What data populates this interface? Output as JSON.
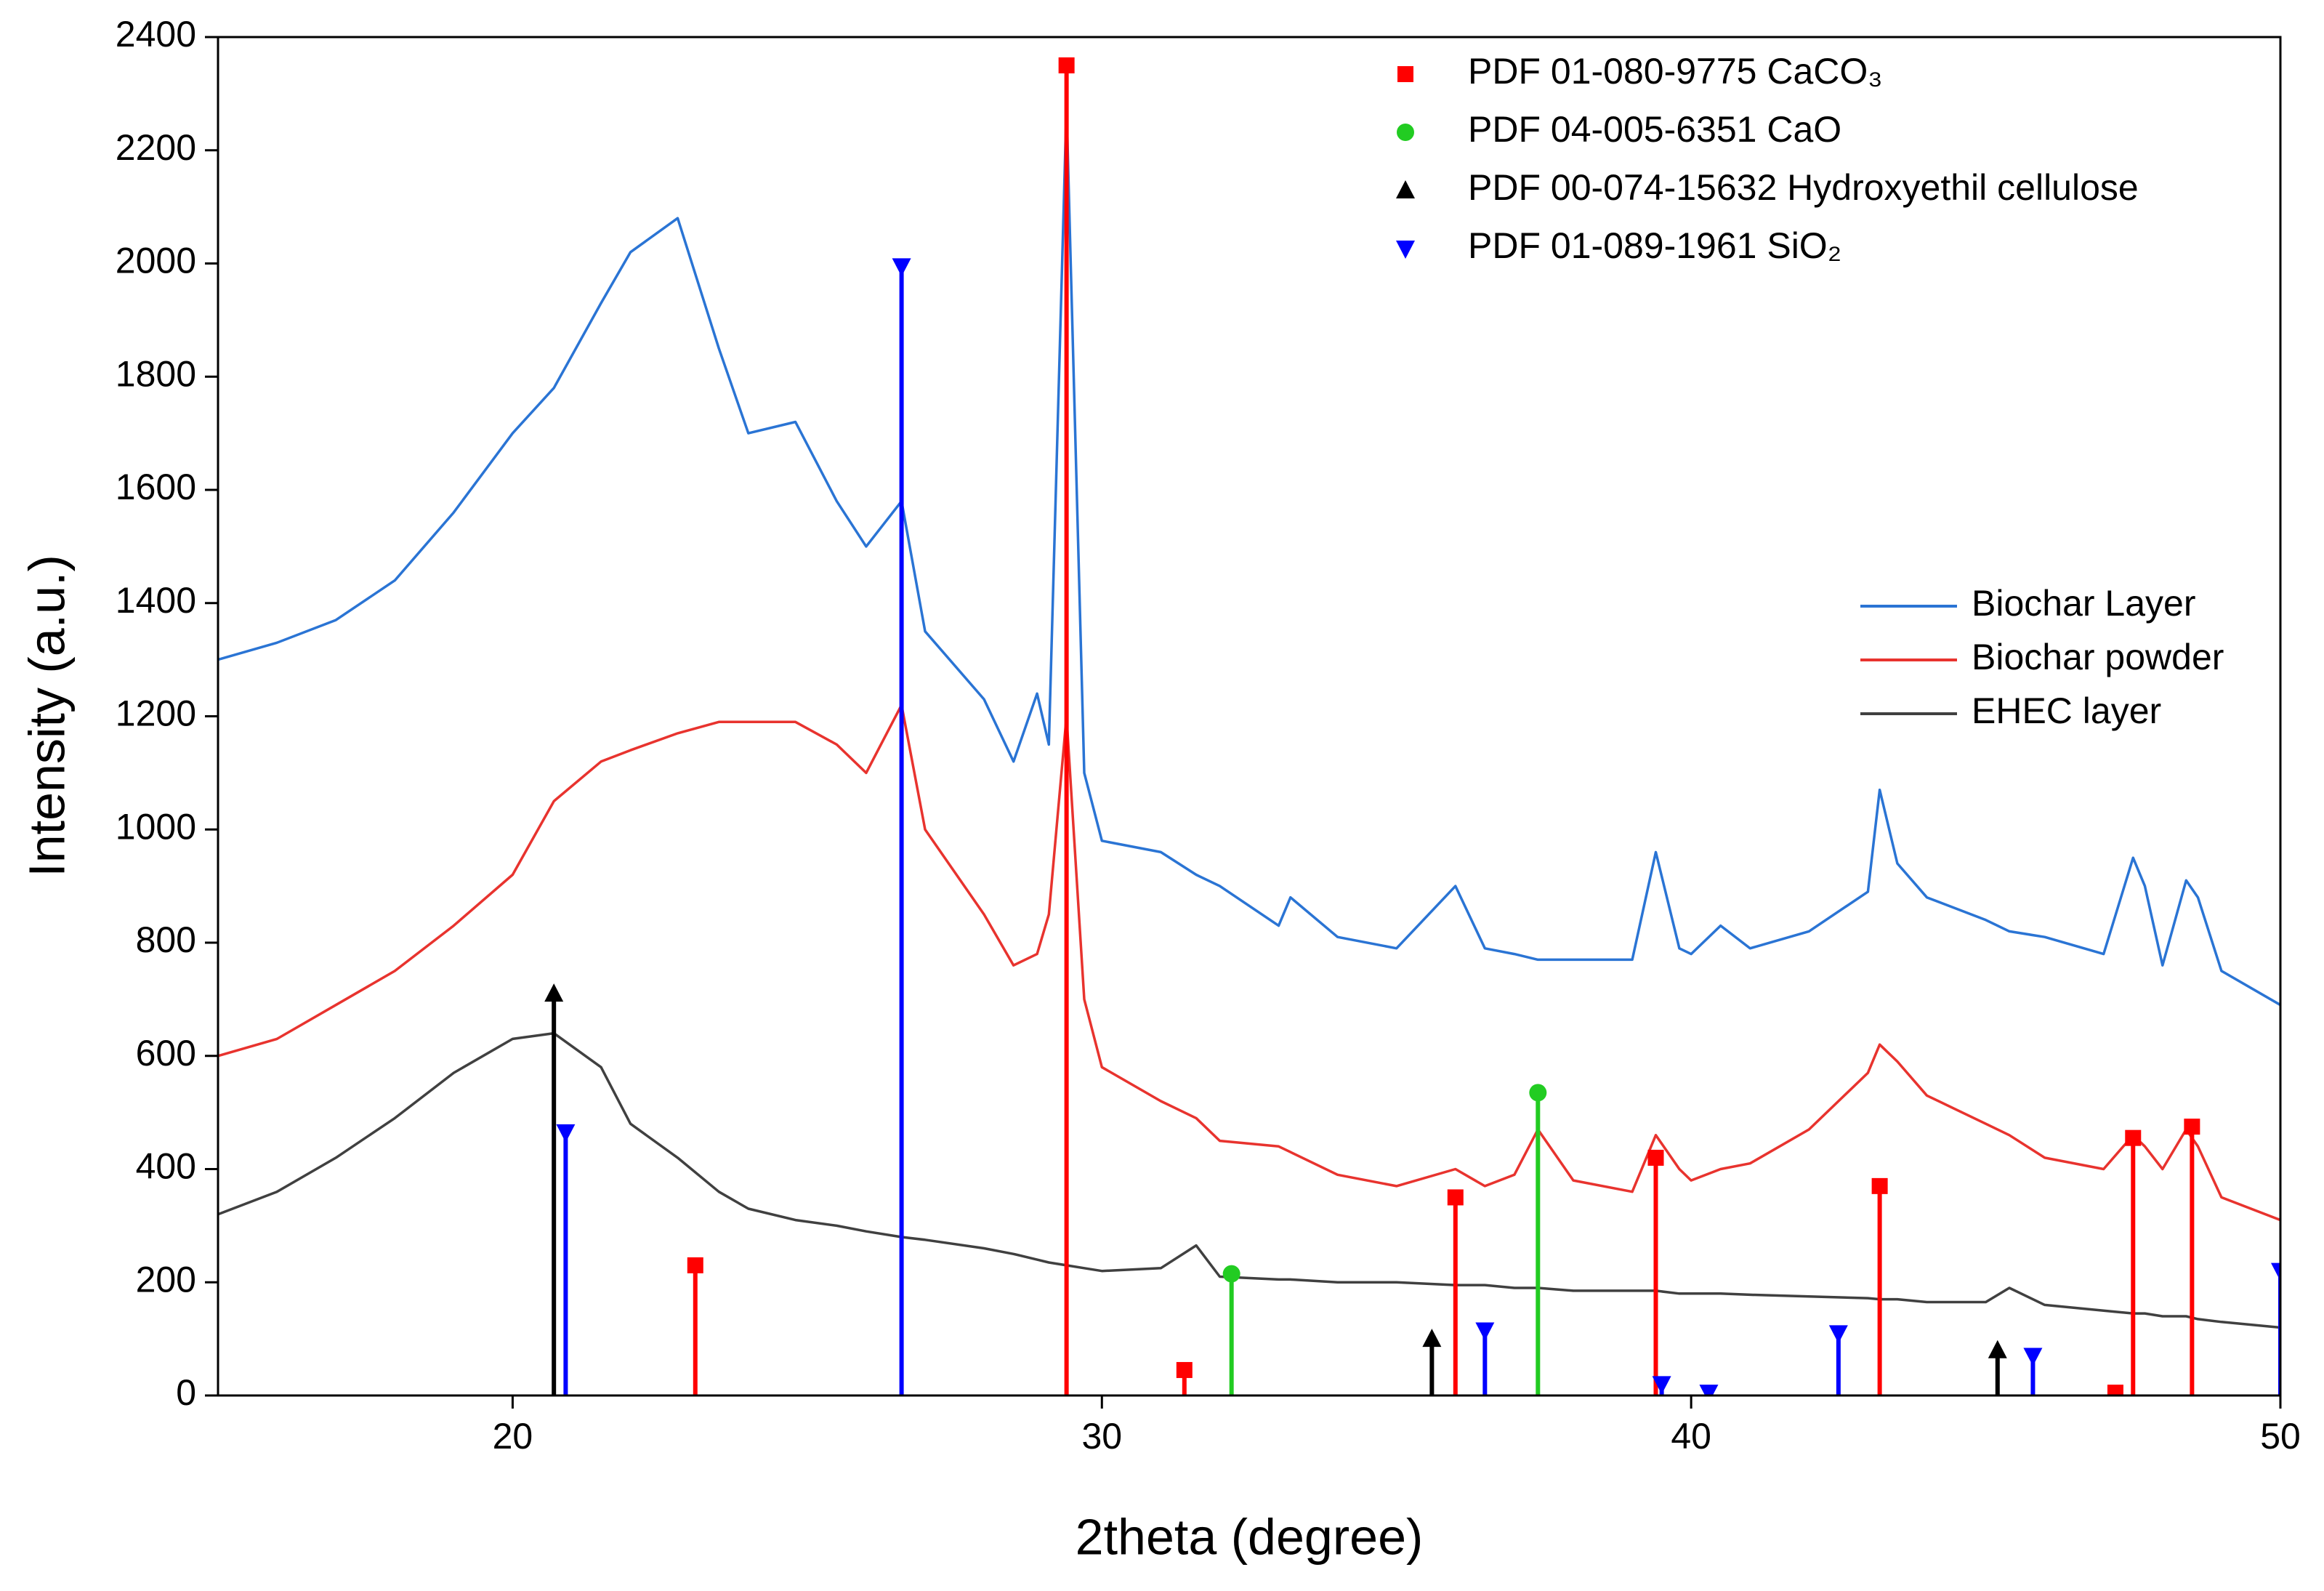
{
  "chart_data": {
    "type": "line",
    "xlabel": "2theta (degree)",
    "ylabel": "Intensity (a.u.)",
    "xlim": [
      15,
      50
    ],
    "ylim": [
      0,
      2400
    ],
    "xticks": [
      20,
      30,
      40,
      50
    ],
    "yticks": [
      0,
      200,
      400,
      600,
      800,
      1000,
      1200,
      1400,
      1600,
      1800,
      2000,
      2200,
      2400
    ],
    "legend": "right",
    "x": [
      15,
      16,
      17,
      18,
      19,
      20,
      20.7,
      21.5,
      22,
      22.8,
      23.5,
      24,
      24.8,
      25.5,
      26,
      26.6,
      27,
      28,
      28.5,
      28.9,
      29.1,
      29.4,
      29.7,
      30,
      31,
      31.6,
      32,
      33,
      33.2,
      34,
      35,
      36,
      36.5,
      37,
      37.4,
      38,
      39,
      39.4,
      39.8,
      40,
      40.5,
      41,
      42,
      43,
      43.2,
      43.5,
      44,
      45,
      45.4,
      46,
      47,
      47.5,
      47.7,
      48,
      48.4,
      48.6,
      49,
      50
    ],
    "series": [
      {
        "name": "Biochar Layer",
        "color": "#2a74d4",
        "values": [
          1300,
          1330,
          1370,
          1440,
          1560,
          1700,
          1780,
          1930,
          2020,
          2080,
          1850,
          1700,
          1720,
          1580,
          1500,
          1580,
          1350,
          1230,
          1120,
          1240,
          1150,
          2280,
          1100,
          980,
          960,
          920,
          900,
          830,
          880,
          810,
          790,
          900,
          790,
          780,
          770,
          770,
          770,
          960,
          790,
          780,
          830,
          790,
          820,
          890,
          1070,
          940,
          880,
          840,
          820,
          810,
          780,
          950,
          900,
          760,
          910,
          880,
          750,
          690
        ]
      },
      {
        "name": "Biochar powder",
        "color": "#e8332e",
        "values": [
          600,
          630,
          690,
          750,
          830,
          920,
          1050,
          1120,
          1140,
          1170,
          1190,
          1190,
          1190,
          1150,
          1100,
          1220,
          1000,
          850,
          760,
          780,
          850,
          1200,
          700,
          580,
          520,
          490,
          450,
          440,
          430,
          390,
          370,
          400,
          370,
          390,
          470,
          380,
          360,
          460,
          400,
          380,
          400,
          410,
          470,
          570,
          620,
          590,
          530,
          480,
          460,
          420,
          400,
          460,
          440,
          400,
          470,
          440,
          350,
          310
        ]
      },
      {
        "name": "EHEC layer",
        "color": "#404040",
        "values": [
          320,
          360,
          420,
          490,
          570,
          630,
          640,
          580,
          480,
          420,
          360,
          330,
          310,
          300,
          290,
          280,
          275,
          260,
          250,
          240,
          235,
          230,
          225,
          220,
          225,
          265,
          210,
          205,
          205,
          200,
          200,
          195,
          195,
          190,
          190,
          185,
          185,
          185,
          180,
          180,
          180,
          178,
          175,
          172,
          170,
          170,
          165,
          165,
          190,
          160,
          150,
          145,
          145,
          140,
          140,
          135,
          130,
          120
        ]
      }
    ],
    "references": [
      {
        "name": "PDF 01-080-9775  CaCO₃",
        "color": "#ff0000",
        "marker": "square",
        "x": [
          23.1,
          29.4,
          31.4,
          36.0,
          39.4,
          43.2,
          47.2,
          47.5,
          48.5
        ],
        "values": [
          230,
          2350,
          45,
          350,
          420,
          370,
          5,
          455,
          475
        ]
      },
      {
        "name": "PDF 04-005-6351 CaO",
        "color": "#22cc22",
        "marker": "circle",
        "x": [
          32.2,
          37.4
        ],
        "values": [
          215,
          535
        ]
      },
      {
        "name": "PDF 00-074-15632 Hydroxyethil cellulose",
        "color": "#000000",
        "marker": "triangle-up",
        "x": [
          20.7,
          35.6,
          45.2
        ],
        "values": [
          710,
          100,
          80
        ]
      },
      {
        "name": "PDF 01-089-1961 SiO₂",
        "color": "#0000ff",
        "marker": "triangle-down",
        "x": [
          20.9,
          26.6,
          36.5,
          39.5,
          40.3,
          42.5,
          45.8,
          50
        ],
        "values": [
          465,
          1995,
          115,
          20,
          5,
          110,
          70,
          220
        ]
      }
    ]
  }
}
